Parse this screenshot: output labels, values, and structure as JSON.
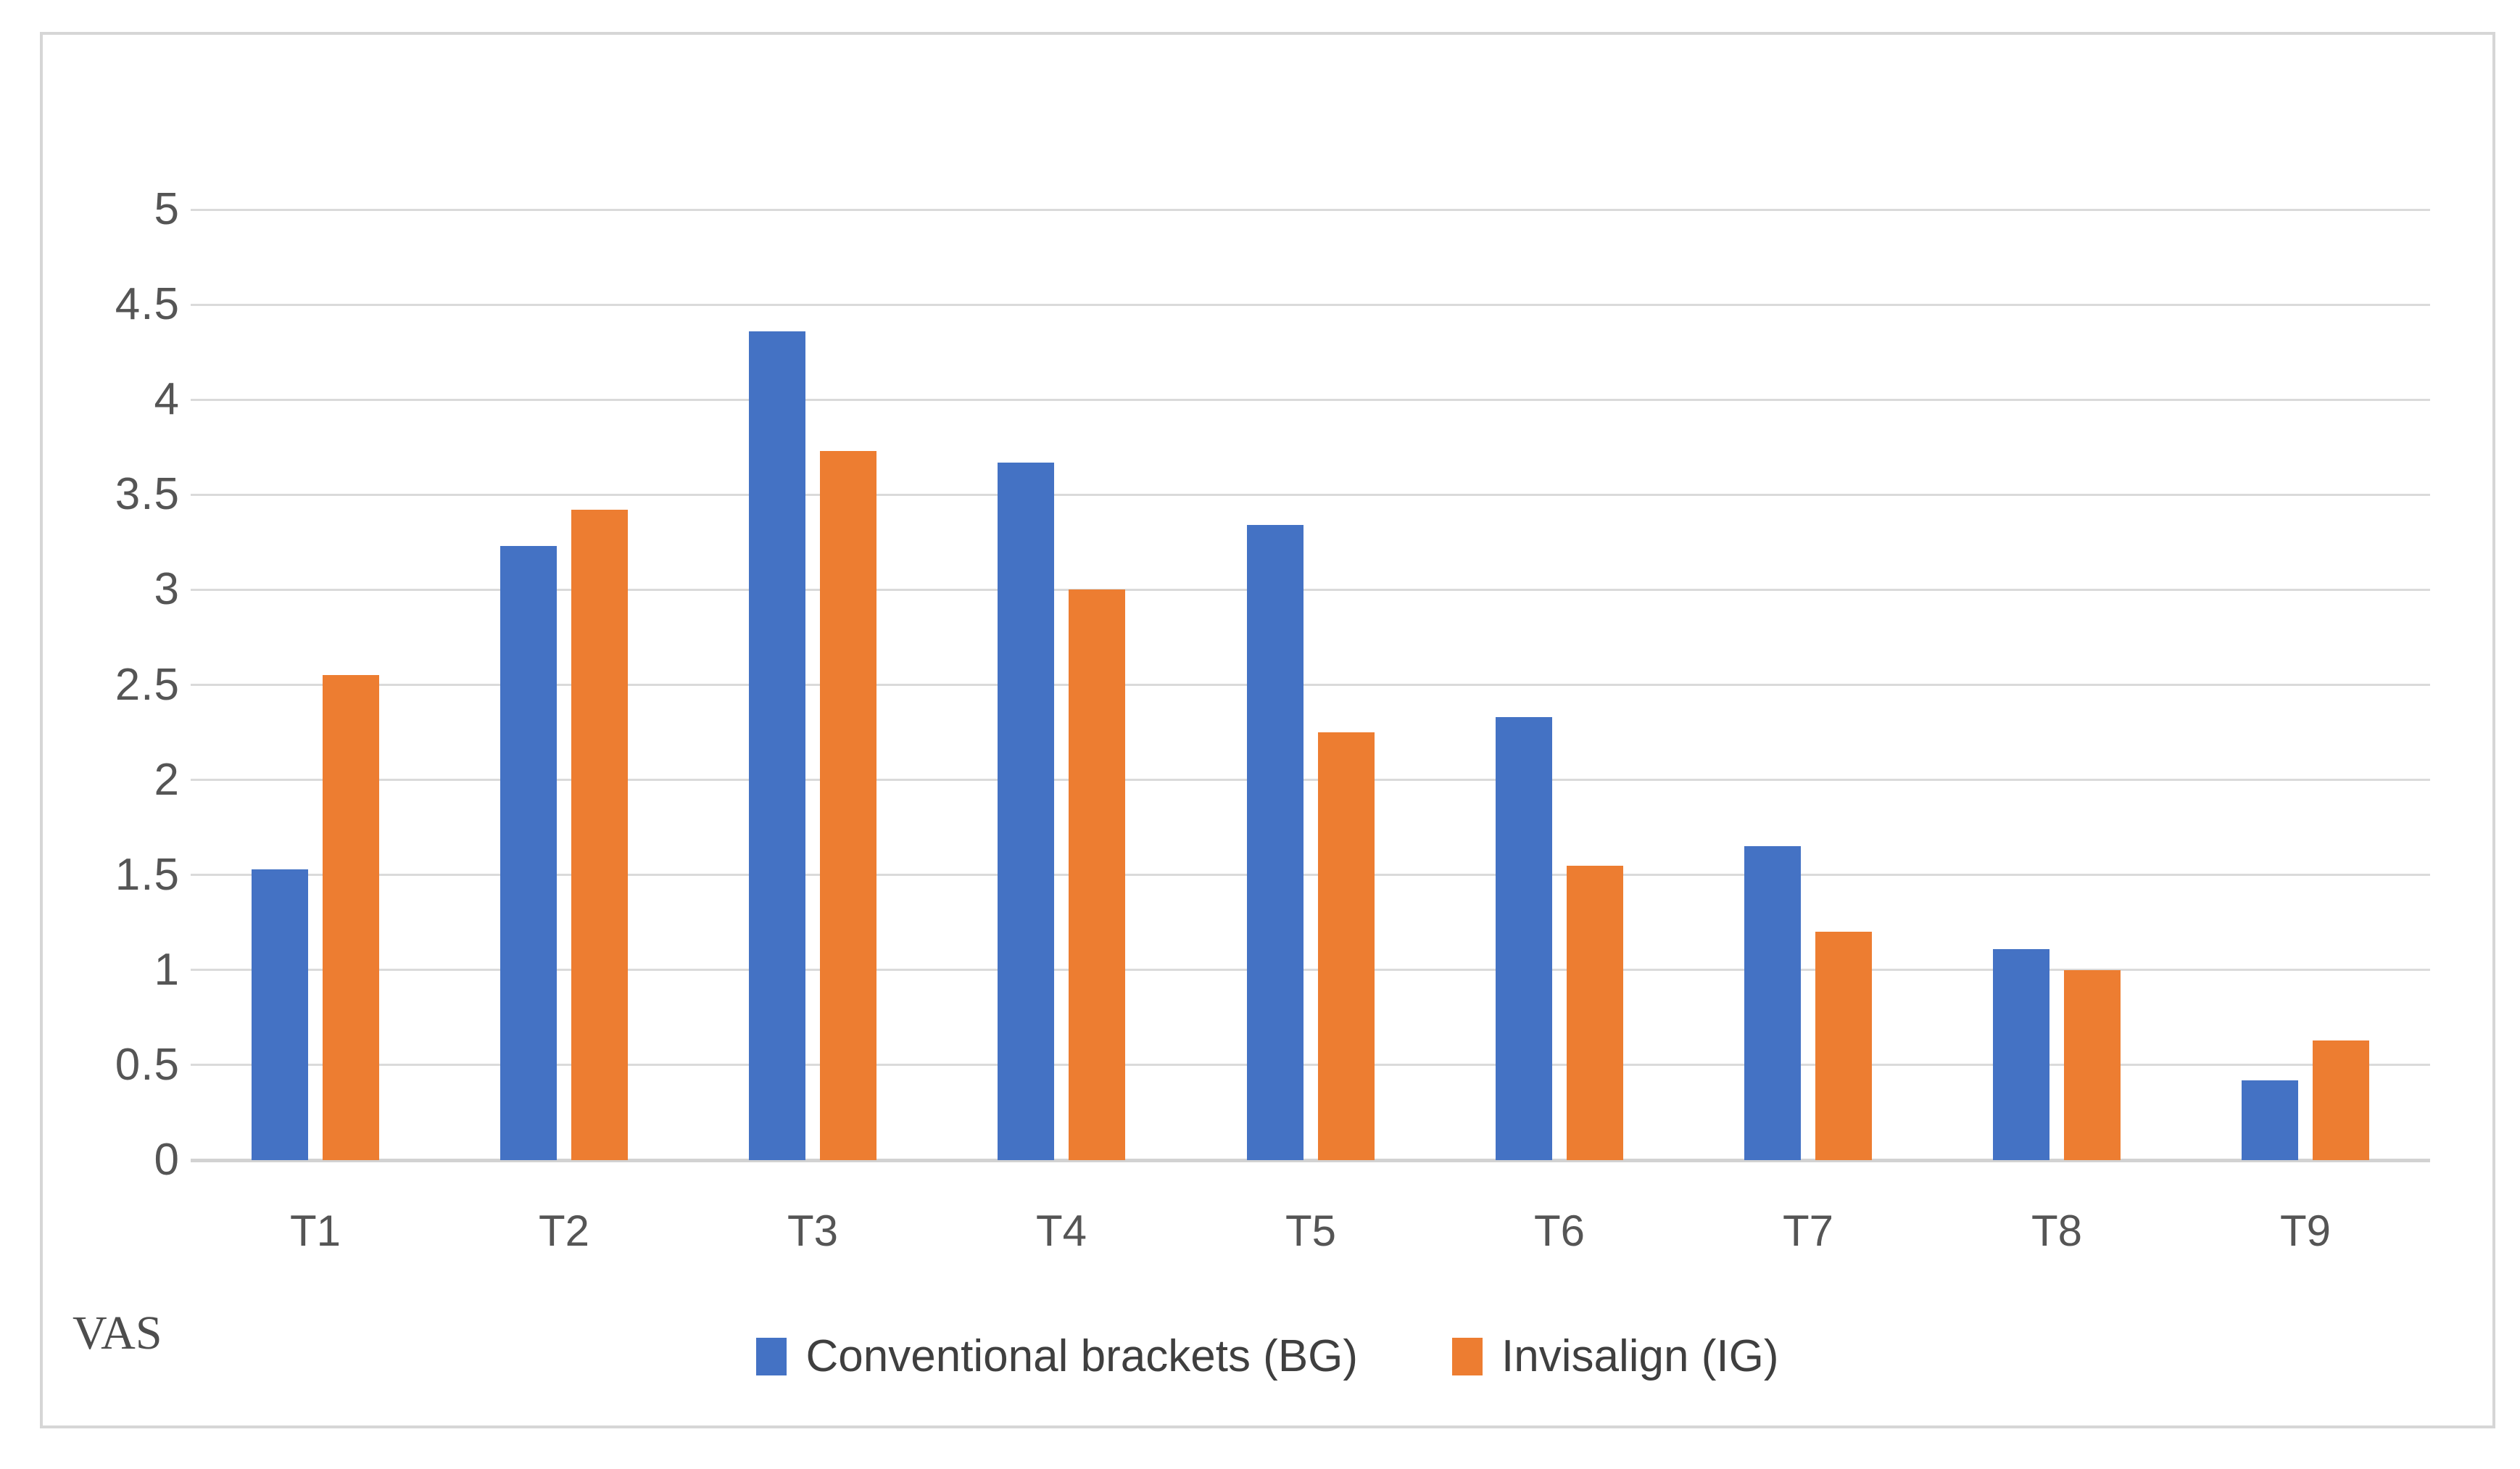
{
  "chart_data": {
    "type": "bar",
    "title": "",
    "categories": [
      "T1",
      "T2",
      "T3",
      "T4",
      "T5",
      "T6",
      "T7",
      "T8",
      "T9"
    ],
    "series": [
      {
        "name": "Conventional brackets (BG)",
        "color": "#4472C4",
        "values": [
          1.53,
          3.23,
          4.36,
          3.67,
          3.34,
          2.33,
          1.65,
          1.11,
          0.42
        ]
      },
      {
        "name": "Invisalign (IG)",
        "color": "#ED7D31",
        "values": [
          2.55,
          3.42,
          3.73,
          3.0,
          2.25,
          1.55,
          1.2,
          1.0,
          0.63
        ]
      }
    ],
    "xlabel": "",
    "ylabel": "VAS",
    "ylim": [
      0,
      5.5
    ],
    "ytick_step": 0.5,
    "ytick_labels": [
      "0",
      "0.5",
      "1",
      "1.5",
      "2",
      "2.5",
      "3",
      "3.5",
      "4",
      "4.5",
      "5"
    ],
    "grid": "horizontal",
    "gridline_color": "#DADADA",
    "axis_line_color": "#D2D2D2",
    "tick_text_color": "#555555",
    "legend_text_color": "#3F3F3F",
    "legend_position": "bottom-center",
    "legend": [
      "Conventional brackets (BG)",
      "Invisalign (IG)"
    ]
  }
}
